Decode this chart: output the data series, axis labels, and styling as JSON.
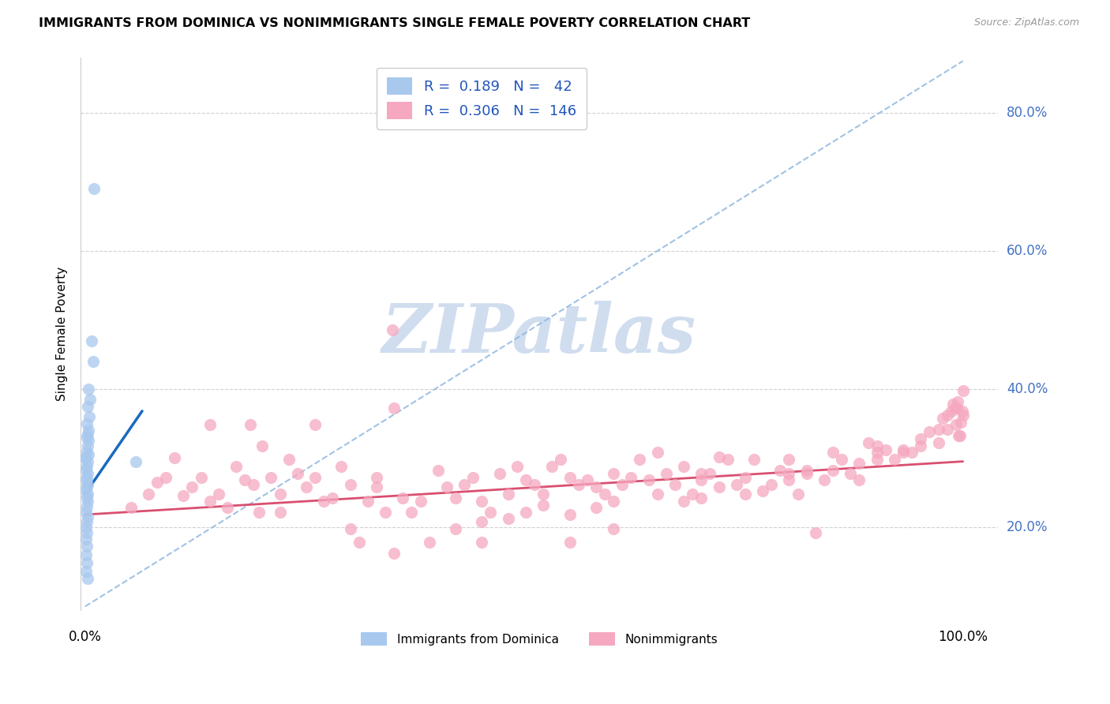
{
  "title": "IMMIGRANTS FROM DOMINICA VS NONIMMIGRANTS SINGLE FEMALE POVERTY CORRELATION CHART",
  "source": "Source: ZipAtlas.com",
  "ylabel": "Single Female Poverty",
  "y_ticks": [
    0.2,
    0.4,
    0.6,
    0.8
  ],
  "y_tick_labels": [
    "20.0%",
    "40.0%",
    "60.0%",
    "80.0%"
  ],
  "legend_label1": "Immigrants from Dominica",
  "legend_label2": "Nonimmigrants",
  "R1": 0.189,
  "N1": 42,
  "R2": 0.306,
  "N2": 146,
  "blue_dot_color": "#A8C8EE",
  "pink_dot_color": "#F5A8C0",
  "blue_line_color": "#1a6abf",
  "pink_line_color": "#d94f70",
  "dashed_line_color": "#90B8E0",
  "watermark_color": "#D0DDEF",
  "xlim": [
    -0.005,
    1.04
  ],
  "ylim": [
    0.08,
    0.88
  ],
  "blue_dots": [
    [
      0.01,
      0.69
    ],
    [
      0.007,
      0.47
    ],
    [
      0.009,
      0.44
    ],
    [
      0.004,
      0.4
    ],
    [
      0.006,
      0.385
    ],
    [
      0.003,
      0.375
    ],
    [
      0.005,
      0.36
    ],
    [
      0.002,
      0.35
    ],
    [
      0.004,
      0.34
    ],
    [
      0.003,
      0.335
    ],
    [
      0.002,
      0.33
    ],
    [
      0.004,
      0.325
    ],
    [
      0.003,
      0.318
    ],
    [
      0.002,
      0.31
    ],
    [
      0.004,
      0.305
    ],
    [
      0.001,
      0.3
    ],
    [
      0.003,
      0.295
    ],
    [
      0.002,
      0.288
    ],
    [
      0.001,
      0.283
    ],
    [
      0.003,
      0.278
    ],
    [
      0.002,
      0.272
    ],
    [
      0.001,
      0.268
    ],
    [
      0.003,
      0.262
    ],
    [
      0.002,
      0.258
    ],
    [
      0.001,
      0.253
    ],
    [
      0.003,
      0.248
    ],
    [
      0.002,
      0.243
    ],
    [
      0.003,
      0.237
    ],
    [
      0.002,
      0.23
    ],
    [
      0.001,
      0.222
    ],
    [
      0.003,
      0.215
    ],
    [
      0.002,
      0.208
    ],
    [
      0.001,
      0.2
    ],
    [
      0.002,
      0.192
    ],
    [
      0.001,
      0.183
    ],
    [
      0.002,
      0.172
    ],
    [
      0.001,
      0.16
    ],
    [
      0.002,
      0.148
    ],
    [
      0.001,
      0.136
    ],
    [
      0.003,
      0.125
    ],
    [
      0.058,
      0.295
    ],
    [
      0.0,
      0.3
    ]
  ],
  "pink_dots": [
    [
      0.35,
      0.485
    ],
    [
      0.082,
      0.265
    ],
    [
      0.092,
      0.272
    ],
    [
      0.102,
      0.3
    ],
    [
      0.112,
      0.245
    ],
    [
      0.122,
      0.258
    ],
    [
      0.132,
      0.272
    ],
    [
      0.142,
      0.238
    ],
    [
      0.152,
      0.248
    ],
    [
      0.162,
      0.228
    ],
    [
      0.172,
      0.288
    ],
    [
      0.182,
      0.268
    ],
    [
      0.192,
      0.262
    ],
    [
      0.202,
      0.318
    ],
    [
      0.212,
      0.272
    ],
    [
      0.222,
      0.248
    ],
    [
      0.232,
      0.298
    ],
    [
      0.242,
      0.278
    ],
    [
      0.252,
      0.258
    ],
    [
      0.262,
      0.272
    ],
    [
      0.272,
      0.238
    ],
    [
      0.282,
      0.242
    ],
    [
      0.292,
      0.288
    ],
    [
      0.302,
      0.262
    ],
    [
      0.312,
      0.178
    ],
    [
      0.322,
      0.238
    ],
    [
      0.332,
      0.258
    ],
    [
      0.342,
      0.222
    ],
    [
      0.352,
      0.162
    ],
    [
      0.362,
      0.242
    ],
    [
      0.372,
      0.222
    ],
    [
      0.382,
      0.238
    ],
    [
      0.392,
      0.178
    ],
    [
      0.402,
      0.282
    ],
    [
      0.412,
      0.258
    ],
    [
      0.422,
      0.242
    ],
    [
      0.432,
      0.262
    ],
    [
      0.442,
      0.272
    ],
    [
      0.452,
      0.238
    ],
    [
      0.462,
      0.222
    ],
    [
      0.472,
      0.278
    ],
    [
      0.482,
      0.248
    ],
    [
      0.492,
      0.288
    ],
    [
      0.502,
      0.268
    ],
    [
      0.512,
      0.262
    ],
    [
      0.522,
      0.248
    ],
    [
      0.532,
      0.288
    ],
    [
      0.542,
      0.298
    ],
    [
      0.552,
      0.272
    ],
    [
      0.562,
      0.262
    ],
    [
      0.572,
      0.268
    ],
    [
      0.582,
      0.258
    ],
    [
      0.592,
      0.248
    ],
    [
      0.602,
      0.278
    ],
    [
      0.612,
      0.262
    ],
    [
      0.622,
      0.272
    ],
    [
      0.632,
      0.298
    ],
    [
      0.642,
      0.268
    ],
    [
      0.652,
      0.248
    ],
    [
      0.662,
      0.278
    ],
    [
      0.672,
      0.262
    ],
    [
      0.682,
      0.288
    ],
    [
      0.692,
      0.248
    ],
    [
      0.702,
      0.268
    ],
    [
      0.712,
      0.278
    ],
    [
      0.722,
      0.258
    ],
    [
      0.732,
      0.298
    ],
    [
      0.742,
      0.262
    ],
    [
      0.752,
      0.272
    ],
    [
      0.762,
      0.298
    ],
    [
      0.772,
      0.252
    ],
    [
      0.782,
      0.262
    ],
    [
      0.792,
      0.282
    ],
    [
      0.802,
      0.268
    ],
    [
      0.812,
      0.248
    ],
    [
      0.822,
      0.278
    ],
    [
      0.832,
      0.192
    ],
    [
      0.842,
      0.268
    ],
    [
      0.852,
      0.282
    ],
    [
      0.862,
      0.298
    ],
    [
      0.872,
      0.278
    ],
    [
      0.882,
      0.268
    ],
    [
      0.892,
      0.322
    ],
    [
      0.902,
      0.308
    ],
    [
      0.912,
      0.312
    ],
    [
      0.922,
      0.298
    ],
    [
      0.932,
      0.312
    ],
    [
      0.942,
      0.308
    ],
    [
      0.952,
      0.318
    ],
    [
      0.962,
      0.338
    ],
    [
      0.972,
      0.322
    ],
    [
      0.977,
      0.358
    ],
    [
      0.982,
      0.342
    ],
    [
      0.987,
      0.368
    ],
    [
      0.989,
      0.378
    ],
    [
      0.991,
      0.372
    ],
    [
      0.993,
      0.372
    ],
    [
      0.994,
      0.382
    ],
    [
      0.995,
      0.332
    ],
    [
      0.997,
      0.332
    ],
    [
      0.998,
      0.352
    ],
    [
      0.999,
      0.368
    ],
    [
      1.0,
      0.398
    ],
    [
      0.188,
      0.348
    ],
    [
      0.142,
      0.348
    ],
    [
      0.262,
      0.348
    ],
    [
      0.198,
      0.222
    ],
    [
      0.222,
      0.222
    ],
    [
      0.302,
      0.198
    ],
    [
      0.352,
      0.372
    ],
    [
      0.422,
      0.198
    ],
    [
      0.452,
      0.208
    ],
    [
      0.482,
      0.212
    ],
    [
      0.502,
      0.222
    ],
    [
      0.522,
      0.232
    ],
    [
      0.552,
      0.218
    ],
    [
      0.582,
      0.228
    ],
    [
      0.602,
      0.238
    ],
    [
      0.652,
      0.308
    ],
    [
      0.682,
      0.238
    ],
    [
      0.702,
      0.242
    ],
    [
      0.722,
      0.302
    ],
    [
      0.752,
      0.248
    ],
    [
      0.802,
      0.278
    ],
    [
      0.822,
      0.282
    ],
    [
      0.852,
      0.308
    ],
    [
      0.882,
      0.292
    ],
    [
      0.902,
      0.298
    ],
    [
      0.932,
      0.308
    ],
    [
      0.952,
      0.328
    ],
    [
      0.972,
      0.342
    ],
    [
      0.982,
      0.362
    ],
    [
      0.992,
      0.348
    ],
    [
      1.0,
      0.362
    ],
    [
      0.332,
      0.272
    ],
    [
      0.452,
      0.178
    ],
    [
      0.552,
      0.178
    ],
    [
      0.602,
      0.198
    ],
    [
      0.702,
      0.278
    ],
    [
      0.802,
      0.298
    ],
    [
      0.902,
      0.318
    ],
    [
      0.052,
      0.228
    ],
    [
      0.072,
      0.248
    ]
  ],
  "diag_line": [
    [
      0.0,
      0.085
    ],
    [
      1.0,
      0.875
    ]
  ],
  "blue_reg_line": [
    [
      0.0,
      0.248
    ],
    [
      0.065,
      0.368
    ]
  ],
  "pink_reg_line": [
    [
      0.0,
      0.218
    ],
    [
      1.0,
      0.295
    ]
  ]
}
